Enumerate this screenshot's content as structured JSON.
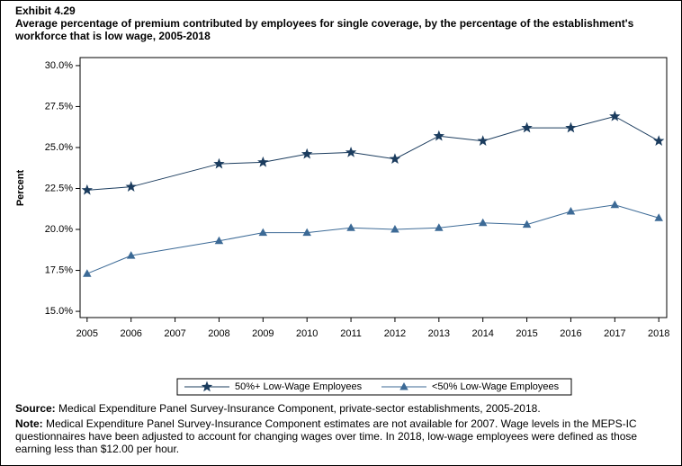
{
  "chart_data": {
    "type": "line",
    "exhibit": "Exhibit 4.29",
    "title": "Average percentage of premium contributed by employees for single coverage, by the percentage of the establishment's workforce that is low wage, 2005-2018",
    "y_label": "Percent",
    "x": [
      2005,
      2006,
      2008,
      2009,
      2010,
      2011,
      2012,
      2013,
      2014,
      2015,
      2016,
      2017,
      2018
    ],
    "xlim": [
      2004.84,
      2018.18
    ],
    "xticks": [
      2005,
      2006,
      2007,
      2008,
      2009,
      2010,
      2011,
      2012,
      2013,
      2014,
      2015,
      2016,
      2017,
      2018
    ],
    "ylim": [
      14.62,
      30.49
    ],
    "yticks": [
      {
        "value": 15,
        "label": "15.0%"
      },
      {
        "value": 17.5,
        "label": "17.5%"
      },
      {
        "value": 20,
        "label": "20.0%"
      },
      {
        "value": 22.5,
        "label": "22.5%"
      },
      {
        "value": 25,
        "label": "25.0%"
      },
      {
        "value": 27.5,
        "label": "27.5%"
      },
      {
        "value": 30,
        "label": "30.0%"
      }
    ],
    "series": [
      {
        "name": "50%+ Low-Wage Employees",
        "color": "#1b3c5e",
        "marker": "star",
        "values": [
          22.4,
          22.6,
          24.0,
          24.1,
          24.6,
          24.7,
          24.3,
          25.7,
          25.4,
          26.2,
          26.2,
          26.9,
          25.4
        ]
      },
      {
        "name": "<50% Low-Wage Employees",
        "color": "#3c6a96",
        "marker": "triangle",
        "values": [
          17.3,
          18.4,
          19.3,
          19.8,
          19.8,
          20.1,
          20.0,
          20.1,
          20.4,
          20.3,
          21.1,
          21.5,
          20.7
        ]
      }
    ],
    "legend": "bottom",
    "source_label": "Source:",
    "source": "Medical Expenditure Panel Survey-Insurance Component, private-sector establishments, 2005-2018.",
    "note_label": "Note:",
    "note": "Medical Expenditure Panel Survey-Insurance Component estimates are not available for 2007. Wage levels in the MEPS-IC questionnaires have been adjusted to account for changing wages over time.  In 2018, low-wage employees were defined as those earning less than $12.00 per hour."
  }
}
